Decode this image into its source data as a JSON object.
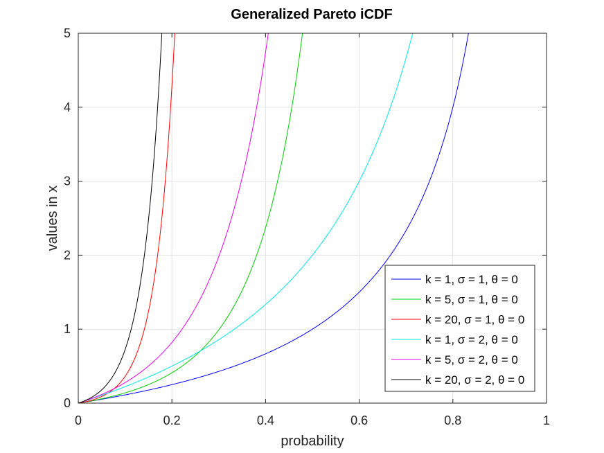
{
  "chart_data": {
    "type": "line",
    "title": "Generalized Pareto iCDF",
    "xlabel": "probability",
    "ylabel": "values in x",
    "xlim": [
      0,
      1
    ],
    "ylim": [
      0,
      5
    ],
    "xticks": [
      0,
      0.2,
      0.4,
      0.6,
      0.8,
      1
    ],
    "xtick_labels": [
      "0",
      "0.2",
      "0.4",
      "0.6",
      "0.8",
      "1"
    ],
    "yticks": [
      0,
      1,
      2,
      3,
      4,
      5
    ],
    "ytick_labels": [
      "0",
      "1",
      "2",
      "3",
      "4",
      "5"
    ],
    "grid": true,
    "legend_position": "bottom-right",
    "series": [
      {
        "name": "k = 1, σ = 1, θ = 0",
        "k": 1,
        "sigma": 1,
        "theta": 0,
        "color": "#0000ff"
      },
      {
        "name": "k = 5, σ = 1, θ = 0",
        "k": 5,
        "sigma": 1,
        "theta": 0,
        "color": "#00cc00"
      },
      {
        "name": "k = 20, σ = 1, θ = 0",
        "k": 20,
        "sigma": 1,
        "theta": 0,
        "color": "#ff0000"
      },
      {
        "name": "k = 1, σ = 2, θ = 0",
        "k": 1,
        "sigma": 2,
        "theta": 0,
        "color": "#00e5e5"
      },
      {
        "name": "k = 5, σ = 2, θ = 0",
        "k": 5,
        "sigma": 2,
        "theta": 0,
        "color": "#e500e5"
      },
      {
        "name": "k = 20, σ = 2, θ = 0",
        "k": 20,
        "sigma": 2,
        "theta": 0,
        "color": "#000000"
      }
    ]
  }
}
